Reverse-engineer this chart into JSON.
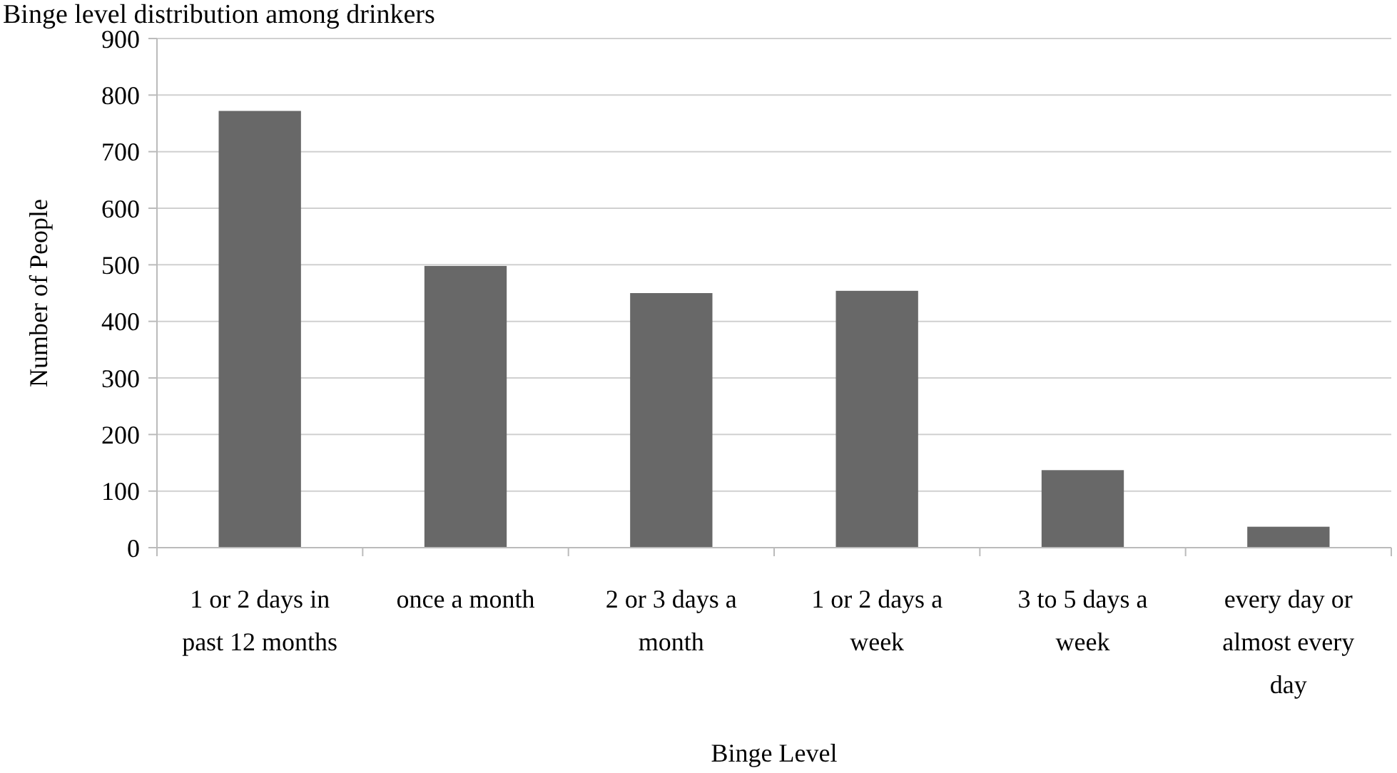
{
  "chart_data": {
    "type": "bar",
    "title": "Binge level distribution among drinkers",
    "xlabel": "Binge Level",
    "ylabel": "Number of People",
    "categories": [
      "1 or 2 days in past 12 months",
      "once a month",
      "2 or 3 days a month",
      "1 or 2 days a week",
      "3 to 5 days a week",
      "every day or almost every day"
    ],
    "values": [
      772,
      498,
      450,
      454,
      137,
      37
    ],
    "color": "#686868",
    "ylim": [
      0,
      900
    ],
    "yticks": [
      0,
      100,
      200,
      300,
      400,
      500,
      600,
      700,
      800,
      900
    ],
    "grid": "y"
  }
}
